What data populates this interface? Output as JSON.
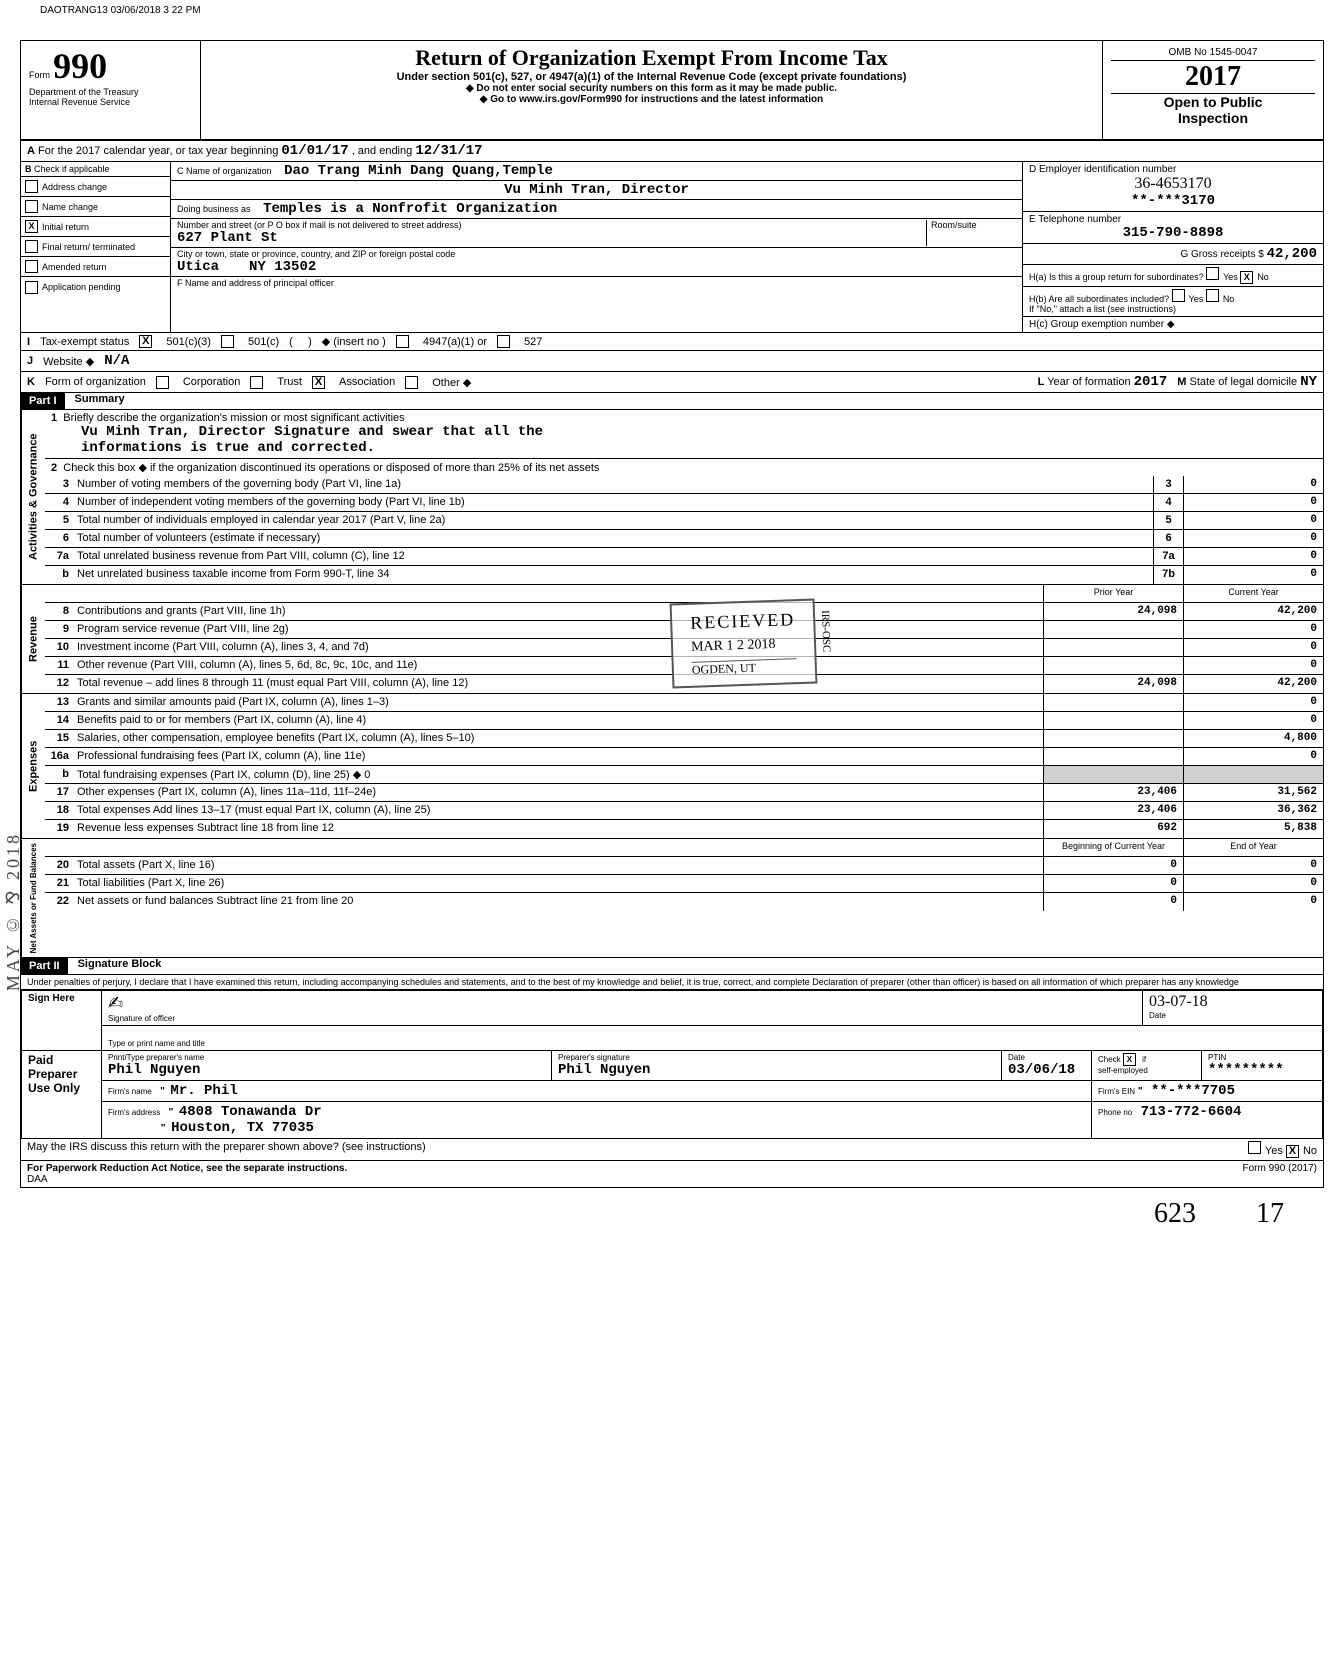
{
  "prep_stamp": "DAOTRANG13 03/06/2018 3 22 PM",
  "header": {
    "form_word": "Form",
    "form_number": "990",
    "dept1": "Department of the Treasury",
    "dept2": "Internal Revenue Service",
    "title": "Return of Organization Exempt From Income Tax",
    "subtitle": "Under section 501(c), 527, or 4947(a)(1) of the Internal Revenue Code (except private foundations)",
    "warn1": "Do not enter social security numbers on this form as it may be made public.",
    "warn2": "Go to www.irs.gov/Form990 for instructions and the latest information",
    "omb": "OMB No  1545-0047",
    "year": "2017",
    "open1": "Open to Public",
    "open2": "Inspection"
  },
  "row_a": {
    "label_a": "A",
    "text": "For the 2017 calendar year, or tax year beginning",
    "begin": "01/01/17",
    "mid": ", and ending",
    "end": "12/31/17"
  },
  "section_b": {
    "b_label": "B",
    "b_sub": "Check if applicable",
    "checks": [
      {
        "label": "Address change",
        "checked": false
      },
      {
        "label": "Name change",
        "checked": false
      },
      {
        "label": "Initial return",
        "checked": true
      },
      {
        "label": "Final return/ terminated",
        "checked": false
      },
      {
        "label": "Amended return",
        "checked": false
      },
      {
        "label": "Application pending",
        "checked": false
      }
    ],
    "c_label": "C  Name of organization",
    "org_name": "Dao Trang Minh Dang Quang,Temple",
    "director": "Vu Minh Tran, Director",
    "dba_label": "Doing business as",
    "dba": "Temples is a Nonfrofit Organization",
    "street_label": "Number and street (or P O  box if mail is not delivered to street address)",
    "street": "627 Plant St",
    "room_label": "Room/suite",
    "city_label": "City or town, state or province, country, and ZIP or foreign postal code",
    "city": "Utica",
    "state_zip": "NY  13502",
    "f_label": "F  Name and address of principal officer",
    "d_label": "D Employer identification number",
    "ein_hand": "36-4653170",
    "ein_masked": "**-***3170",
    "e_label": "E Telephone number",
    "phone": "315-790-8898",
    "g_label": "G Gross receipts $",
    "gross": "42,200",
    "h_a": "H(a) Is this a group return for subordinates?",
    "h_b": "H(b) Are all subordinates included?",
    "h_note": "If \"No,\" attach a list  (see instructions)",
    "h_c": "H(c) Group exemption number ◆",
    "yes": "Yes",
    "no": "No"
  },
  "row_i": {
    "label": "I",
    "desc": "Tax-exempt status",
    "opt501c3": "501(c)(3)",
    "opt501c": "501(c)",
    "insert": "◆ (insert no )",
    "opt4947": "4947(a)(1) or",
    "opt527": "527"
  },
  "row_j": {
    "label": "J",
    "desc": "Website ◆",
    "val": "N/A"
  },
  "row_k": {
    "label": "K",
    "desc": "Form of organization",
    "corp": "Corporation",
    "trust": "Trust",
    "assoc": "Association",
    "other": "Other ◆",
    "l_label": "L",
    "year_label": "Year of formation",
    "year_val": "2017",
    "m_label": "M",
    "state_label": "State of legal domicile",
    "state_val": "NY"
  },
  "part1": {
    "header": "Part I",
    "title": "Summary",
    "governance": {
      "vlabel": "Activities & Governance",
      "line1_label": "Briefly describe the organization's mission or most significant activities",
      "line1_text1": "Vu Minh Tran, Director Signature and swear that all the",
      "line1_text2": "informations is true and corrected.",
      "line2": "Check this box ◆         if the organization discontinued its operations or disposed of more than 25% of its net assets",
      "rows": [
        {
          "n": "3",
          "d": "Number of voting members of the governing body (Part VI, line 1a)",
          "box": "3",
          "v": "0"
        },
        {
          "n": "4",
          "d": "Number of independent voting members of the governing body (Part VI, line 1b)",
          "box": "4",
          "v": "0"
        },
        {
          "n": "5",
          "d": "Total number of individuals employed in calendar year 2017 (Part V, line 2a)",
          "box": "5",
          "v": "0"
        },
        {
          "n": "6",
          "d": "Total number of volunteers (estimate if necessary)",
          "box": "6",
          "v": "0"
        },
        {
          "n": "7a",
          "d": "Total unrelated business revenue from Part VIII, column (C), line 12",
          "box": "7a",
          "v": "0"
        },
        {
          "n": "b",
          "d": "Net unrelated business taxable income from Form 990-T, line 34",
          "box": "7b",
          "v": "0"
        }
      ]
    },
    "col_headers": {
      "prior": "Prior Year",
      "current": "Current Year"
    },
    "revenue": {
      "vlabel": "Revenue",
      "rows": [
        {
          "n": "8",
          "d": "Contributions and grants (Part VIII, line 1h)",
          "p": "24,098",
          "c": "42,200"
        },
        {
          "n": "9",
          "d": "Program service revenue (Part VIII, line 2g)",
          "p": "",
          "c": "0"
        },
        {
          "n": "10",
          "d": "Investment income (Part VIII, column (A), lines 3, 4, and 7d)",
          "p": "",
          "c": "0"
        },
        {
          "n": "11",
          "d": "Other revenue (Part VIII, column (A), lines 5, 6d, 8c, 9c, 10c, and 11e)",
          "p": "",
          "c": "0"
        },
        {
          "n": "12",
          "d": "Total revenue – add lines 8 through 11 (must equal Part VIII, column (A), line 12)",
          "p": "24,098",
          "c": "42,200"
        }
      ]
    },
    "expenses": {
      "vlabel": "Expenses",
      "rows": [
        {
          "n": "13",
          "d": "Grants and similar amounts paid (Part IX, column (A), lines 1–3)",
          "p": "",
          "c": "0"
        },
        {
          "n": "14",
          "d": "Benefits paid to or for members (Part IX, column (A), line 4)",
          "p": "",
          "c": "0"
        },
        {
          "n": "15",
          "d": "Salaries, other compensation, employee benefits (Part IX, column (A), lines 5–10)",
          "p": "",
          "c": "4,800"
        },
        {
          "n": "16a",
          "d": "Professional fundraising fees (Part IX, column (A), line 11e)",
          "p": "",
          "c": "0"
        },
        {
          "n": "b",
          "d": "Total fundraising expenses (Part IX, column (D), line 25) ◆                                  0",
          "p": "shaded",
          "c": "shaded"
        },
        {
          "n": "17",
          "d": "Other expenses (Part IX, column (A), lines 11a–11d, 11f–24e)",
          "p": "23,406",
          "c": "31,562"
        },
        {
          "n": "18",
          "d": "Total expenses  Add lines 13–17 (must equal Part IX, column (A), line 25)",
          "p": "23,406",
          "c": "36,362"
        },
        {
          "n": "19",
          "d": "Revenue less expenses  Subtract line 18 from line 12",
          "p": "692",
          "c": "5,838"
        }
      ]
    },
    "netassets": {
      "vlabel": "Net Assets or Fund Balances",
      "col_headers": {
        "begin": "Beginning of Current Year",
        "end": "End of Year"
      },
      "rows": [
        {
          "n": "20",
          "d": "Total assets (Part X, line 16)",
          "p": "0",
          "c": "0"
        },
        {
          "n": "21",
          "d": "Total liabilities (Part X, line 26)",
          "p": "0",
          "c": "0"
        },
        {
          "n": "22",
          "d": "Net assets or fund balances  Subtract line 21 from line 20",
          "p": "0",
          "c": "0"
        }
      ]
    }
  },
  "part2": {
    "header": "Part II",
    "title": "Signature Block",
    "perjury": "Under penalties of perjury, I declare that I have examined this return, including accompanying schedules and statements, and to the best of my knowledge and belief, it is true, correct, and complete  Declaration of preparer (other than officer) is based on all information of which preparer has any knowledge",
    "sign_here": "Sign Here",
    "sig_officer": "Signature of officer",
    "sig_date_label": "Date",
    "sig_date_val": "03-07-18",
    "type_name": "Type or print name and title",
    "paid": "Paid Preparer Use Only",
    "prep_name_label": "Print/Type preparer's name",
    "prep_name": "Phil Nguyen",
    "prep_sig_label": "Preparer's signature",
    "prep_sig": "Phil Nguyen",
    "date_label": "Date",
    "date_val": "03/06/18",
    "check_label": "Check",
    "self_emp": "self-employed",
    "ptin_label": "PTIN",
    "ptin": "*********",
    "firm_name_label": "Firm's name",
    "firm_name": "Mr. Phil",
    "firm_ein_label": "Firm's EIN",
    "firm_ein": "**-***7705",
    "firm_addr_label": "Firm's address",
    "firm_addr1": "4808 Tonawanda Dr",
    "firm_addr2": "Houston, TX   77035",
    "phone_label": "Phone no",
    "phone": "713-772-6604",
    "discuss": "May the IRS discuss this return with the preparer shown above? (see instructions)",
    "discuss_yes": "Yes",
    "discuss_no": "No"
  },
  "footer": {
    "pra": "For Paperwork Reduction Act Notice, see the separate instructions.",
    "daa": "DAA",
    "form": "Form 990 (2017)"
  },
  "stamp": {
    "received": "RECIEVED",
    "date": "MAR 1 2 2018",
    "irs": "IRS-OSC",
    "ogden": "OGDEN, UT"
  },
  "side_stamp": "MAY © ⅋ 2018",
  "hw_bottom": {
    "a": "623",
    "b": "17"
  }
}
